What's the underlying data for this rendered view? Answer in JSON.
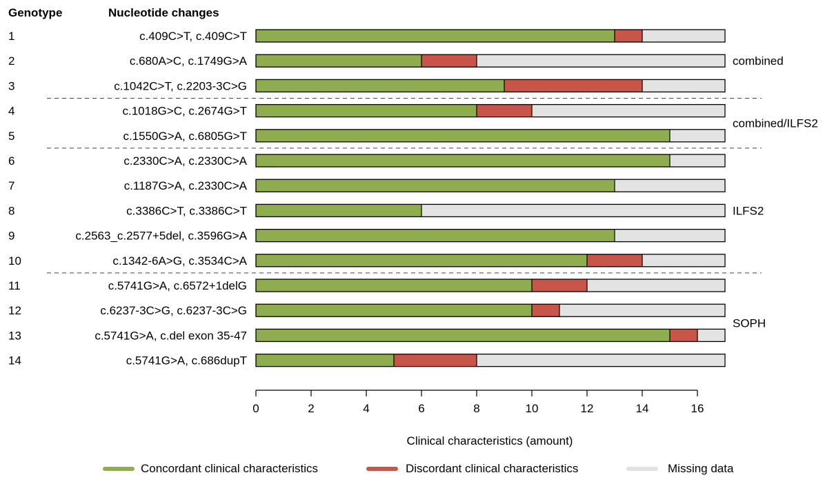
{
  "chart_data": {
    "type": "bar",
    "stacked": true,
    "orientation": "horizontal",
    "headers": {
      "genotype": "Genotype",
      "nucleotide": "Nucleotide changes"
    },
    "xlabel": "Clinical characteristics (amount)",
    "xlim": [
      0,
      17
    ],
    "xticks": [
      0,
      2,
      4,
      6,
      8,
      10,
      12,
      14,
      16
    ],
    "rows": [
      {
        "genotype": "1",
        "nucleotide": "c.409C>T, c.409C>T",
        "values": [
          13,
          1,
          3
        ]
      },
      {
        "genotype": "2",
        "nucleotide": "c.680A>C, c.1749G>A",
        "values": [
          6,
          2,
          9
        ]
      },
      {
        "genotype": "3",
        "nucleotide": "c.1042C>T, c.2203-3C>G",
        "values": [
          9,
          5,
          3
        ]
      },
      {
        "genotype": "4",
        "nucleotide": "c.1018G>C, c.2674G>T",
        "values": [
          8,
          2,
          7
        ]
      },
      {
        "genotype": "5",
        "nucleotide": "c.1550G>A, c.6805G>T",
        "values": [
          15,
          0,
          2
        ]
      },
      {
        "genotype": "6",
        "nucleotide": "c.2330C>A, c.2330C>A",
        "values": [
          15,
          0,
          2
        ]
      },
      {
        "genotype": "7",
        "nucleotide": "c.1187G>A, c.2330C>A",
        "values": [
          13,
          0,
          4
        ]
      },
      {
        "genotype": "8",
        "nucleotide": "c.3386C>T, c.3386C>T",
        "values": [
          6,
          0,
          11
        ]
      },
      {
        "genotype": "9",
        "nucleotide": "c.2563_c.2577+5del,  c.3596G>A",
        "values": [
          13,
          0,
          4
        ]
      },
      {
        "genotype": "10",
        "nucleotide": "c.1342-6A>G, c.3534C>A",
        "values": [
          12,
          2,
          3
        ]
      },
      {
        "genotype": "11",
        "nucleotide": "c.5741G>A, c.6572+1delG",
        "values": [
          10,
          2,
          5
        ]
      },
      {
        "genotype": "12",
        "nucleotide": "c.6237-3C>G, c.6237-3C>G",
        "values": [
          10,
          1,
          6
        ]
      },
      {
        "genotype": "13",
        "nucleotide": "c.5741G>A, c.del exon 35-47",
        "values": [
          15,
          1,
          1
        ]
      },
      {
        "genotype": "14",
        "nucleotide": "c.5741G>A, c.686dupT",
        "values": [
          5,
          3,
          9
        ]
      }
    ],
    "series": [
      {
        "name": "Concordant clinical characteristics",
        "color": "#8fad4e"
      },
      {
        "name": "Discordant clinical characteristics",
        "color": "#c8554a"
      },
      {
        "name": "Missing data",
        "color": "#e3e3e3"
      }
    ],
    "groups": [
      {
        "label": "combined",
        "rows": [
          0,
          2
        ]
      },
      {
        "label": "combined/ILFS2",
        "rows": [
          3,
          4
        ]
      },
      {
        "label": "ILFS2",
        "rows": [
          5,
          9
        ]
      },
      {
        "label": "SOPH",
        "rows": [
          10,
          13
        ]
      }
    ],
    "legend_position": "bottom",
    "grid": false
  }
}
